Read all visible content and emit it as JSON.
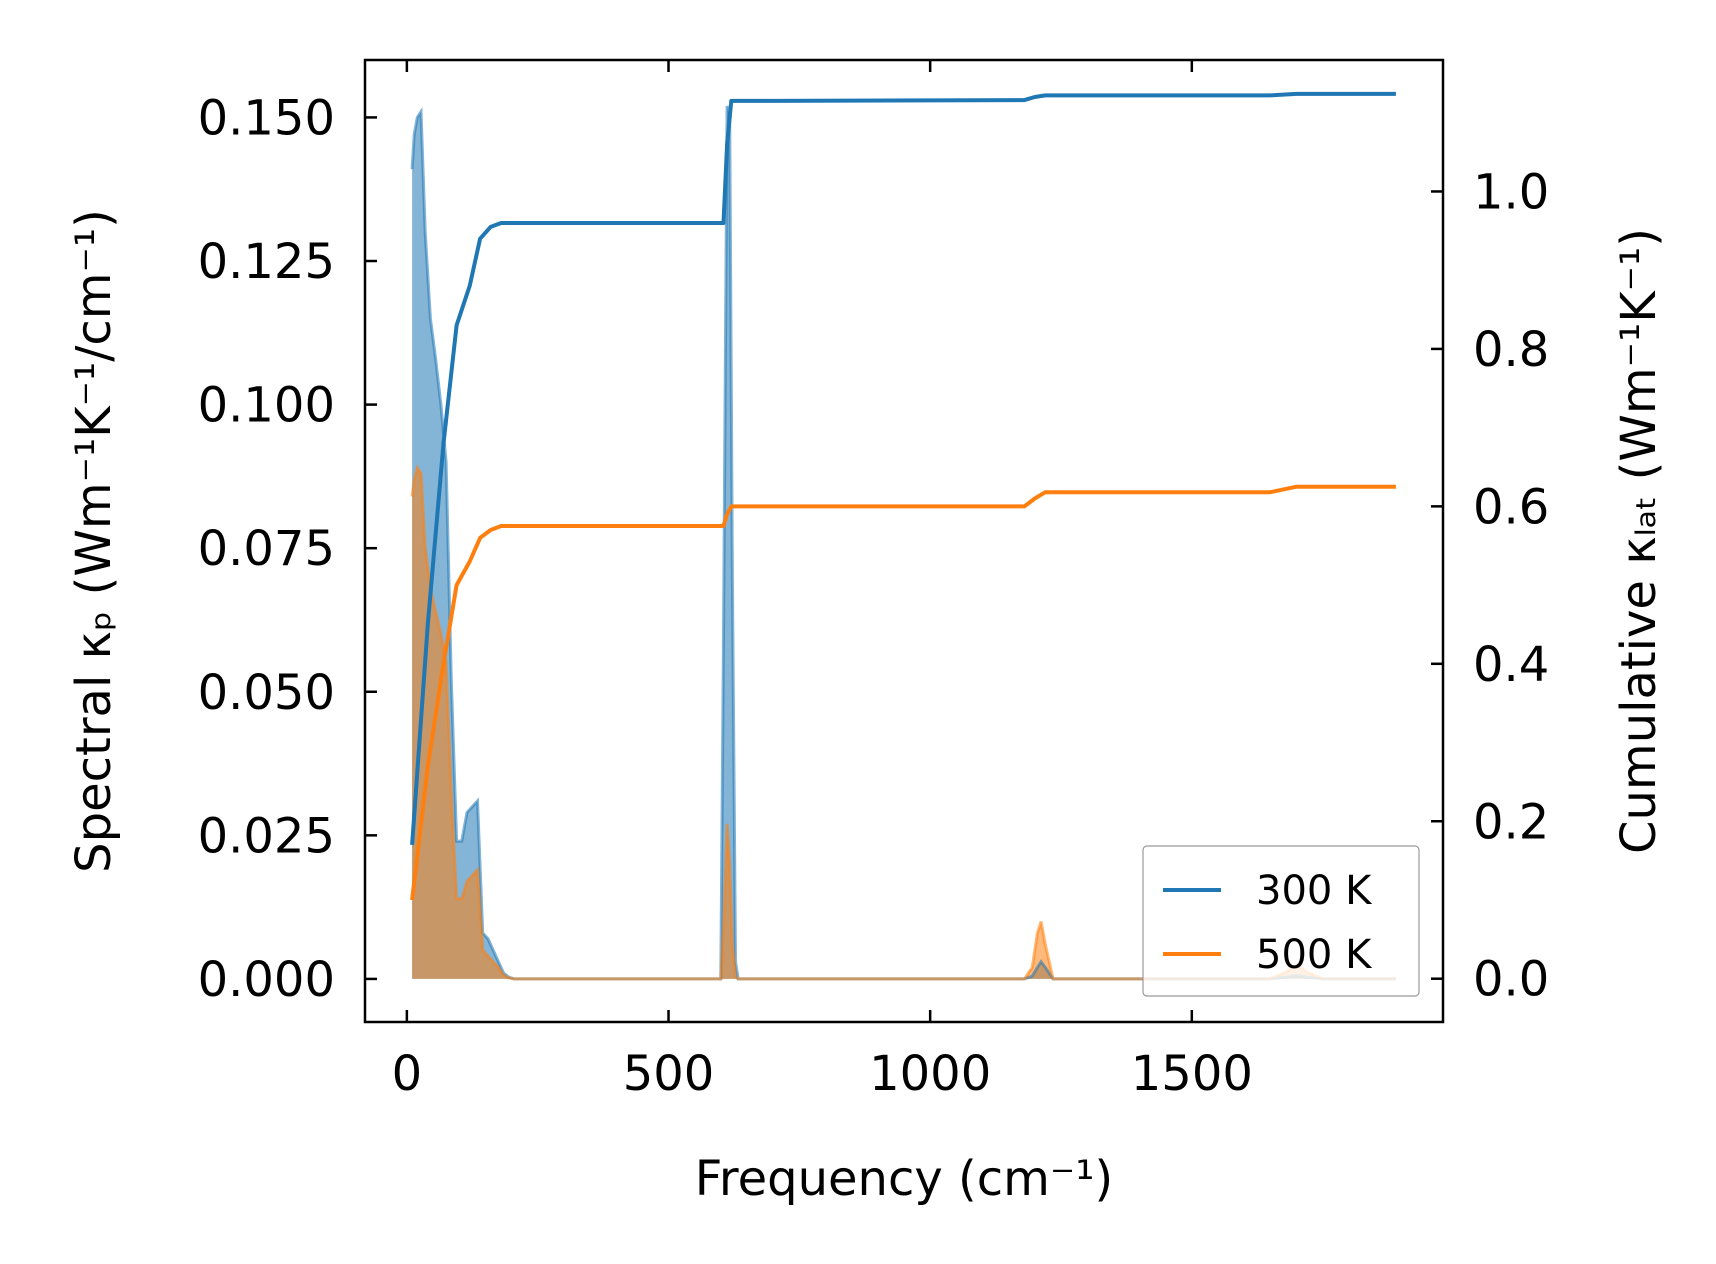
{
  "chart_data": {
    "type": "line",
    "xlabel": "Frequency (cm⁻¹)",
    "ylabel_left": "Spectral κₚ (Wm⁻¹K⁻¹/cm⁻¹)",
    "ylabel_right": "Cumulative κₗₐₜ (Wm⁻¹K⁻¹)",
    "xlim": [
      -80,
      1980
    ],
    "ylim_left": [
      -0.0075,
      0.16
    ],
    "ylim_right": [
      -0.055,
      1.167
    ],
    "xticks": [
      0,
      500,
      1000,
      1500
    ],
    "xtick_labels": [
      "0",
      "500",
      "1000",
      "1500"
    ],
    "yticks_left": [
      0,
      0.025,
      0.05,
      0.075,
      0.1,
      0.125,
      0.15
    ],
    "ytick_labels_left": [
      "0.000",
      "0.025",
      "0.050",
      "0.075",
      "0.100",
      "0.125",
      "0.150"
    ],
    "yticks_right": [
      0,
      0.2,
      0.4,
      0.6,
      0.8,
      1.0
    ],
    "ytick_labels_right": [
      "0.0",
      "0.2",
      "0.4",
      "0.6",
      "0.8",
      "1.0"
    ],
    "legend_position": "lower-right",
    "grid": false,
    "series": [
      {
        "name": "300 K",
        "color": "#1f77b4",
        "spectral_x": [
          10,
          14,
          20,
          27,
          35,
          45,
          55,
          65,
          75,
          85,
          95,
          105,
          115,
          125,
          135,
          145,
          155,
          165,
          175,
          185,
          195,
          205,
          600,
          605,
          612,
          617,
          622,
          628,
          633,
          1180,
          1195,
          1205,
          1212,
          1220,
          1235,
          1650,
          1680,
          1700,
          1720,
          1750,
          1890
        ],
        "spectral_y": [
          0.141,
          0.147,
          0.15,
          0.151,
          0.13,
          0.115,
          0.108,
          0.1,
          0.09,
          0.052,
          0.024,
          0.024,
          0.029,
          0.03,
          0.031,
          0.008,
          0.007,
          0.005,
          0.003,
          0.001,
          0.0003,
          0,
          0,
          0.06,
          0.152,
          0.15,
          0.07,
          0.003,
          0,
          0,
          0.0005,
          0.002,
          0.003,
          0.002,
          0,
          0,
          0.0003,
          0.0006,
          0.0003,
          0,
          0
        ],
        "cumulative_x": [
          10,
          40,
          70,
          95,
          120,
          140,
          160,
          180,
          200,
          605,
          612,
          620,
          700,
          1180,
          1200,
          1220,
          1400,
          1650,
          1700,
          1890
        ],
        "cumulative_y": [
          0.17,
          0.45,
          0.68,
          0.83,
          0.88,
          0.94,
          0.955,
          0.96,
          0.96,
          0.96,
          1.06,
          1.115,
          1.115,
          1.116,
          1.12,
          1.122,
          1.122,
          1.122,
          1.124,
          1.124
        ]
      },
      {
        "name": "500 K",
        "color": "#ff7f0e",
        "spectral_x": [
          10,
          14,
          20,
          27,
          35,
          45,
          55,
          65,
          75,
          85,
          95,
          105,
          115,
          125,
          135,
          145,
          155,
          165,
          175,
          185,
          195,
          205,
          600,
          605,
          612,
          617,
          622,
          628,
          633,
          1180,
          1195,
          1205,
          1212,
          1220,
          1235,
          1650,
          1680,
          1700,
          1720,
          1750,
          1890
        ],
        "spectral_y": [
          0.084,
          0.087,
          0.089,
          0.088,
          0.075,
          0.068,
          0.064,
          0.06,
          0.055,
          0.032,
          0.014,
          0.014,
          0.017,
          0.018,
          0.019,
          0.005,
          0.004,
          0.003,
          0.002,
          0.0006,
          0.0002,
          0,
          0,
          0.009,
          0.027,
          0.02,
          0.006,
          0.0005,
          0,
          0,
          0.002,
          0.008,
          0.01,
          0.006,
          0,
          0,
          0.0012,
          0.0025,
          0.0012,
          0,
          0
        ],
        "cumulative_x": [
          10,
          40,
          70,
          95,
          120,
          140,
          160,
          180,
          200,
          605,
          612,
          620,
          700,
          1180,
          1200,
          1220,
          1400,
          1650,
          1700,
          1890
        ],
        "cumulative_y": [
          0.1,
          0.27,
          0.4,
          0.5,
          0.53,
          0.56,
          0.57,
          0.575,
          0.575,
          0.575,
          0.59,
          0.6,
          0.6,
          0.6,
          0.61,
          0.618,
          0.618,
          0.618,
          0.625,
          0.625
        ]
      }
    ]
  }
}
